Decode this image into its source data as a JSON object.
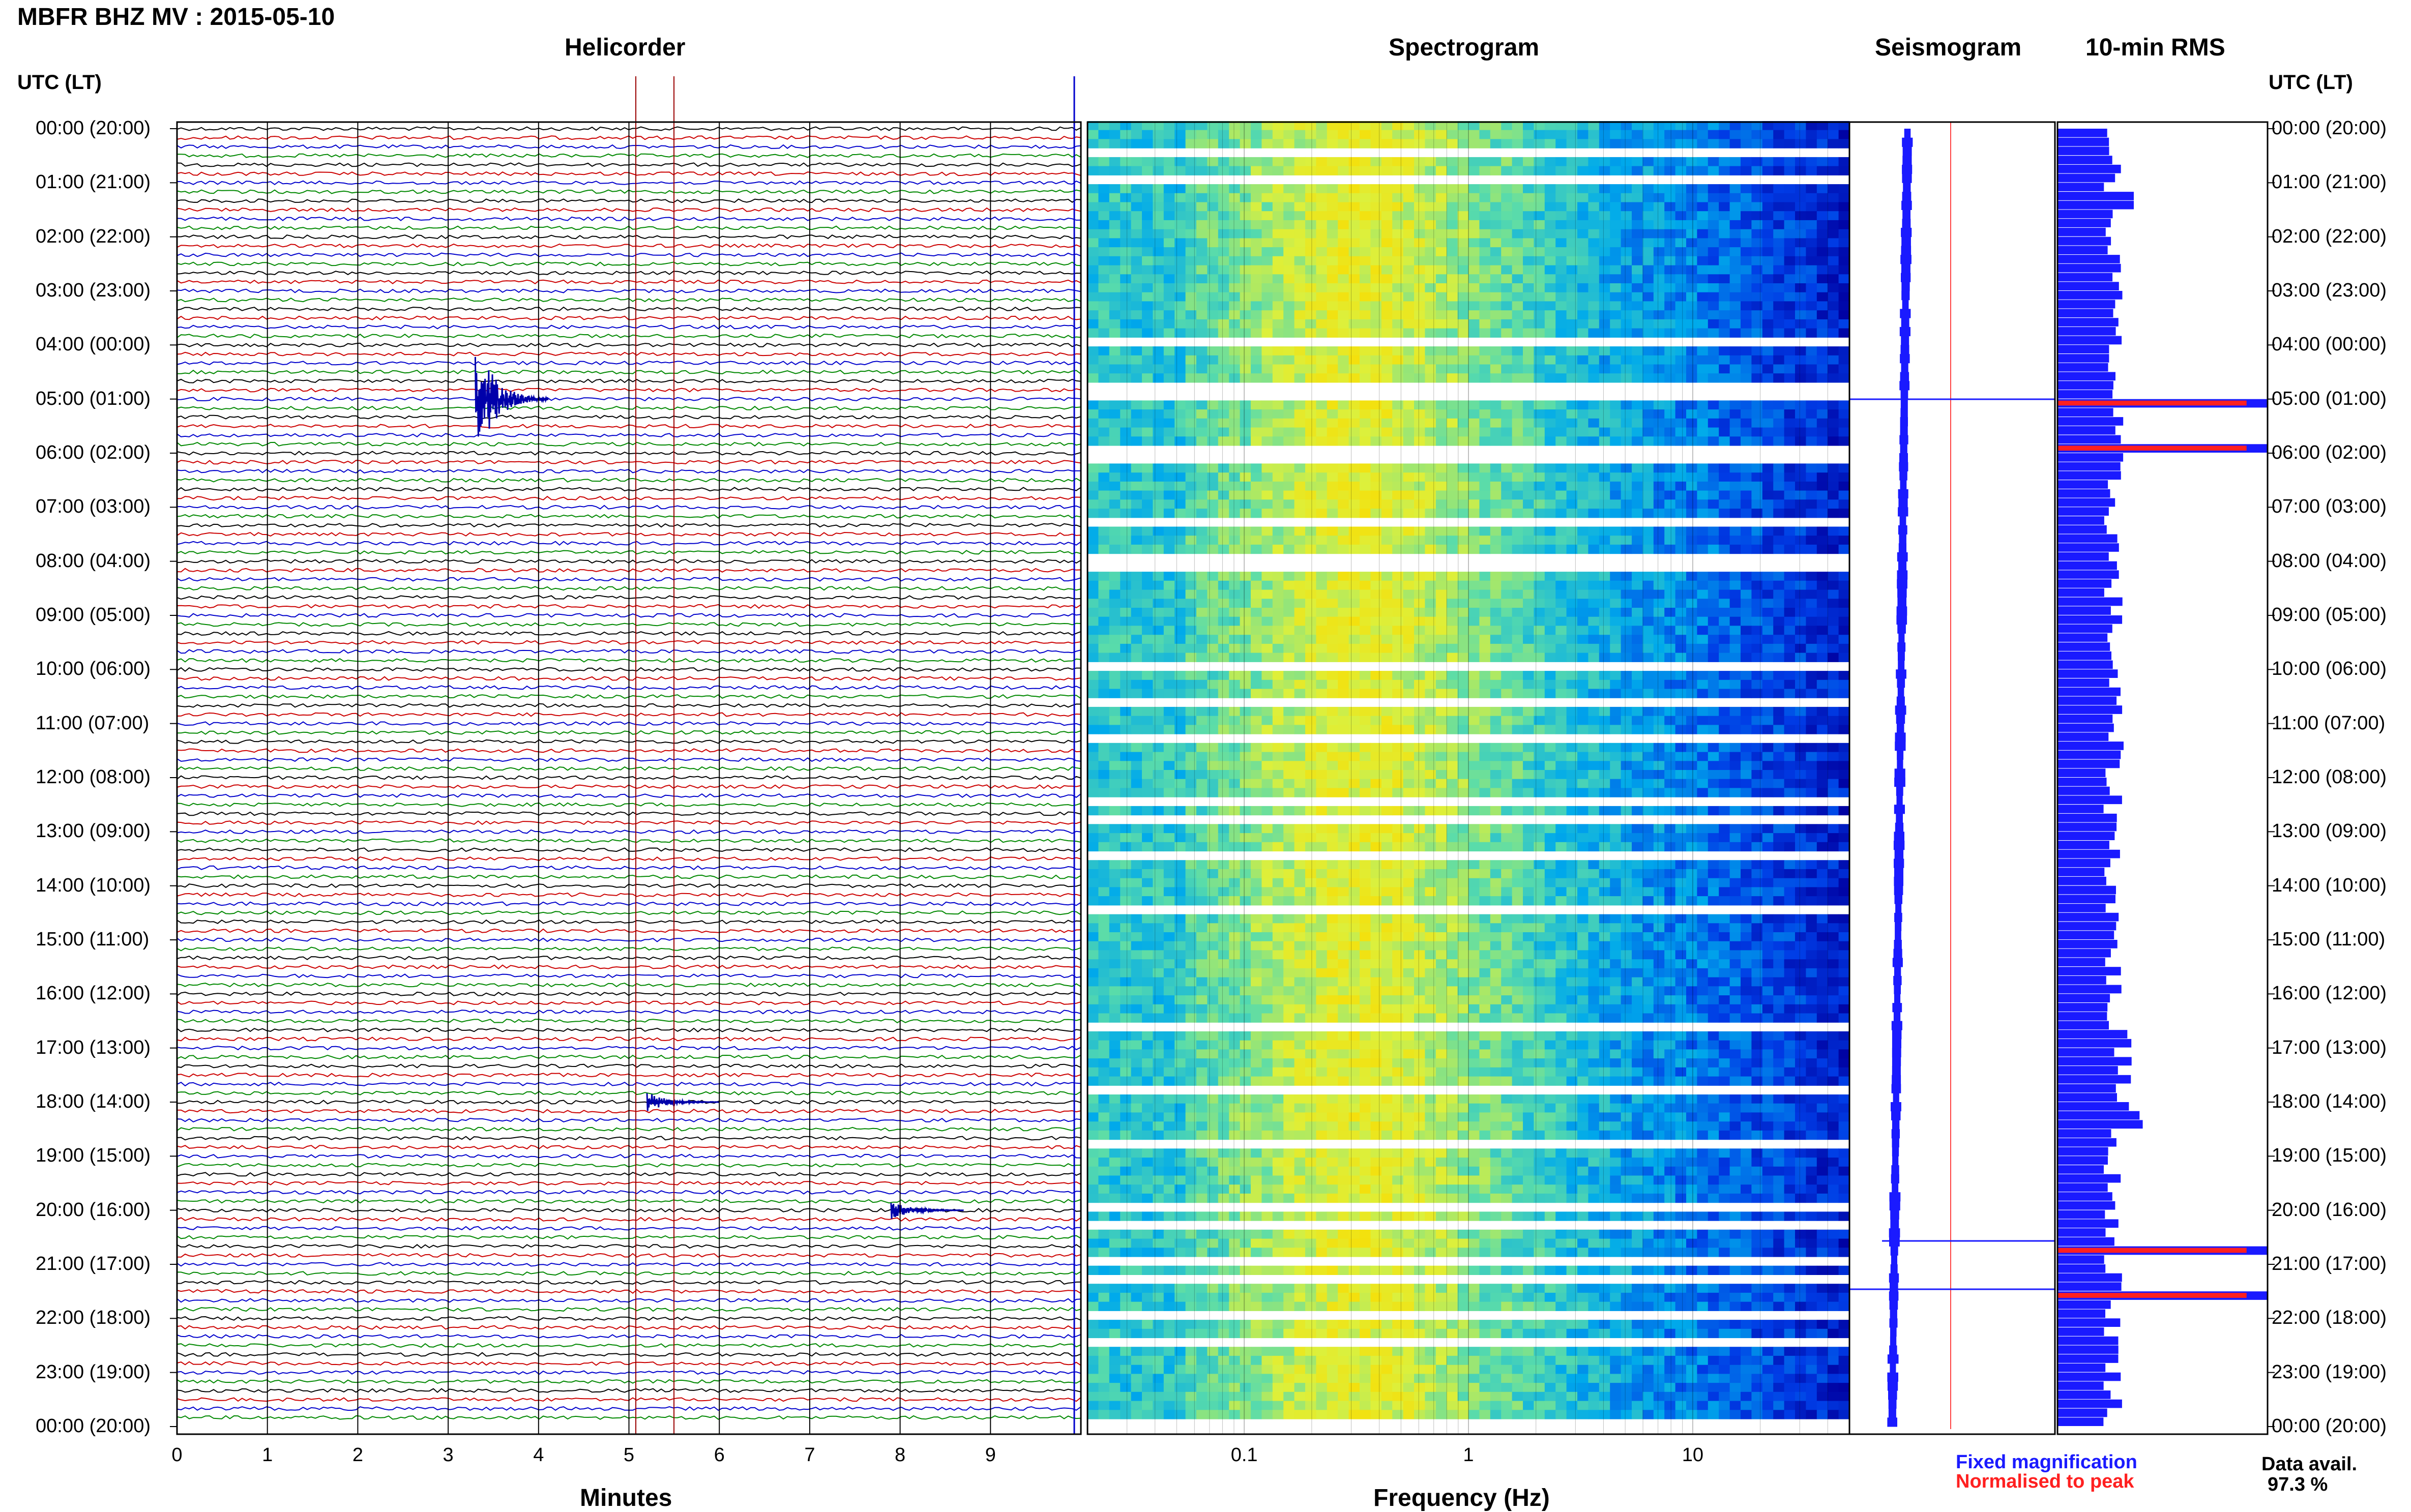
{
  "title": "MBFR BHZ MV : 2015-05-10",
  "panels": {
    "helicorder": "Helicorder",
    "spectrogram": "Spectrogram",
    "seismogram": "Seismogram",
    "rms": "10-min RMS"
  },
  "time_axis_header": "UTC (LT)",
  "time_labels": [
    "00:00 (20:00)",
    "01:00 (21:00)",
    "02:00 (22:00)",
    "03:00 (23:00)",
    "04:00 (00:00)",
    "05:00 (01:00)",
    "06:00 (02:00)",
    "07:00 (03:00)",
    "08:00 (04:00)",
    "09:00 (05:00)",
    "10:00 (06:00)",
    "11:00 (07:00)",
    "12:00 (08:00)",
    "13:00 (09:00)",
    "14:00 (10:00)",
    "15:00 (11:00)",
    "16:00 (12:00)",
    "17:00 (13:00)",
    "18:00 (14:00)",
    "19:00 (15:00)",
    "20:00 (16:00)",
    "21:00 (17:00)",
    "22:00 (18:00)",
    "23:00 (19:00)",
    "00:00 (20:00)"
  ],
  "legend": {
    "fixed": "Fixed magnification",
    "normalised": "Normalised to peak",
    "fixed_color": "#1a1aff",
    "normalised_color": "#ff2020"
  },
  "data_availability": {
    "label": "Data avail.",
    "value": "97.3 %"
  },
  "chart_data": [
    {
      "type": "line",
      "panel": "Helicorder",
      "xlabel": "Minutes",
      "ylabel": "UTC (LT)",
      "xticks": [
        "0",
        "1",
        "2",
        "3",
        "4",
        "5",
        "6",
        "7",
        "8",
        "9"
      ],
      "xlim": [
        0,
        10
      ],
      "trace_colors": [
        "#000000",
        "#cc0000",
        "#0000cc",
        "#008800"
      ],
      "n_traces": 144,
      "events": [
        {
          "time_utc": "05:00",
          "minute": 3.3,
          "description_shown": "large blue signal"
        },
        {
          "time_utc": "18:00",
          "minute": 5.2
        },
        {
          "time_utc": "20:00",
          "minute": 7.9
        }
      ]
    },
    {
      "type": "heatmap",
      "panel": "Spectrogram",
      "xlabel": "Frequency (Hz)",
      "xscale": "log",
      "xticks": [
        "0.1",
        "1",
        "10"
      ],
      "xlim": [
        0.02,
        50
      ]
    },
    {
      "type": "line",
      "panel": "Seismogram"
    },
    {
      "type": "bar",
      "panel": "10-min RMS",
      "orientation": "horizontal",
      "n_bars": 144,
      "peak_red_bars_at_utc": [
        "05:00",
        "05:50",
        "20:40",
        "21:30"
      ]
    }
  ]
}
